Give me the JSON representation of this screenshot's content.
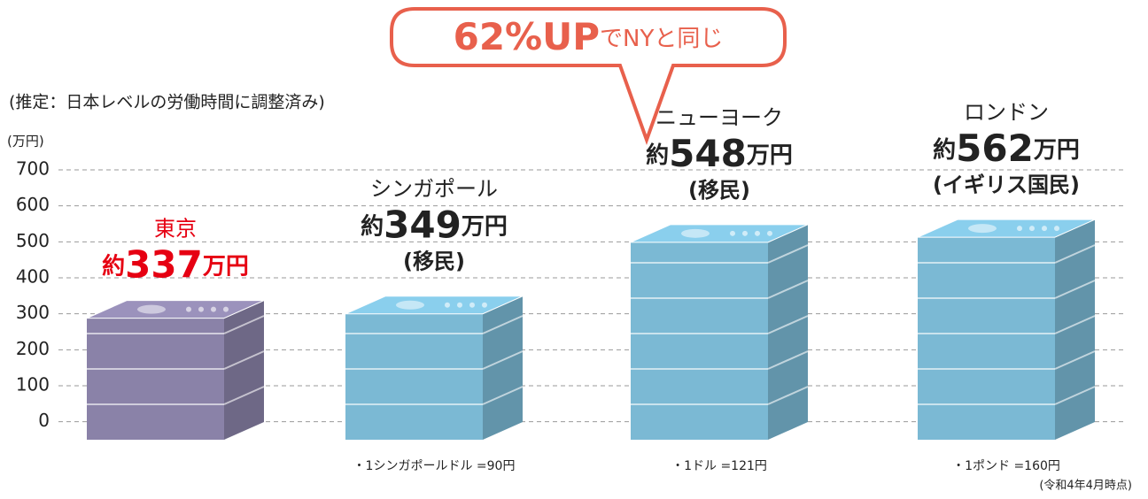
{
  "chart_data": {
    "type": "bar",
    "annotation": {
      "highlight": "62%UP",
      "text": "でNYと同じ"
    },
    "subtitle": "(推定：日本レベルの労働時間に調整済み)",
    "y_label": "(万円)",
    "categories": [
      "東京",
      "シンガポール",
      "ニューヨーク",
      "ロンドン"
    ],
    "values": [
      337,
      349,
      548,
      562
    ],
    "value_labels": [
      "約337万円",
      "約349万円",
      "約548万円",
      "約562万円"
    ],
    "sublabels": [
      null,
      "(移民)",
      "(移民)",
      "(イギリス国民)"
    ],
    "colors": [
      "#8a82a8",
      "#7bb9d4",
      "#7bb9d4",
      "#7bb9d4"
    ],
    "label_colors": [
      "#e60012",
      "#222222",
      "#222222",
      "#222222"
    ],
    "notes": [
      null,
      "・1シンガポールドル =90円",
      "・1ドル =121円",
      "・1ポンド =160円"
    ],
    "footnote": "(令和4年4月時点)",
    "ylim": [
      -50,
      700
    ],
    "yticks": [
      0,
      100,
      200,
      300,
      400,
      500,
      600,
      700
    ],
    "grid": true
  }
}
